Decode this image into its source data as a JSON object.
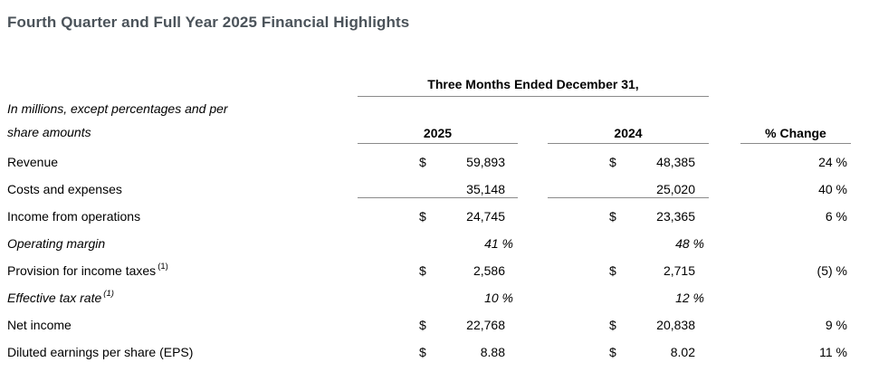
{
  "title": "Fourth Quarter and Full Year 2025 Financial Highlights",
  "table": {
    "period_header": "Three Months Ended December 31,",
    "note": {
      "line1": "In millions, except percentages and per",
      "line2": "share amounts"
    },
    "col_headers": {
      "y2025": "2025",
      "y2024": "2024",
      "pct_change": "% Change"
    },
    "rows": [
      {
        "label": "Revenue",
        "cur1": "$",
        "val1": "59,893",
        "cur2": "$",
        "val2": "48,385",
        "chg": "24 %"
      },
      {
        "label": "Costs and expenses",
        "cur1": "",
        "val1": "35,148",
        "cur2": "",
        "val2": "25,020",
        "chg": "40 %"
      },
      {
        "label": "Income from operations",
        "cur1": "$",
        "val1": "24,745",
        "cur2": "$",
        "val2": "23,365",
        "chg": "6 %"
      },
      {
        "label": "Operating margin",
        "cur1": "",
        "val1": "41 %",
        "cur2": "",
        "val2": "48 %",
        "chg": ""
      },
      {
        "label": "Provision for income taxes",
        "sup": "(1)",
        "cur1": "$",
        "val1": "2,586",
        "cur2": "$",
        "val2": "2,715",
        "chg": "(5) %"
      },
      {
        "label": "Effective tax rate",
        "sup": "(1)",
        "cur1": "",
        "val1": "10 %",
        "cur2": "",
        "val2": "12 %",
        "chg": ""
      },
      {
        "label": "Net income",
        "cur1": "$",
        "val1": "22,768",
        "cur2": "$",
        "val2": "20,838",
        "chg": "9 %"
      },
      {
        "label": "Diluted earnings per share (EPS)",
        "cur1": "$",
        "val1": "8.88",
        "cur2": "$",
        "val2": "8.02",
        "chg": "11 %"
      }
    ]
  },
  "colors": {
    "background": "#ffffff",
    "title_text": "#4b535a",
    "body_text": "#000000",
    "rule": "#8a8a8a"
  }
}
